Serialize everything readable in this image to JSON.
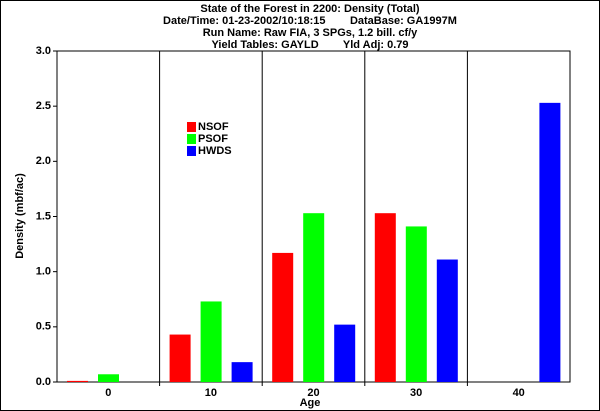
{
  "chart_data": {
    "type": "bar",
    "title": "State of the Forest in 2200: Density (Total)",
    "subtitle": [
      "Date/Time: 01-23-2002/10:18:15        DataBase: GA1997M",
      "Run Name: Raw FIA, 3 SPGs, 1.2 bill. cf/y",
      "Yield Tables: GAYLD        Yld Adj: 0.79"
    ],
    "x_label": "Age",
    "y_label": "Density (mbf/ac)",
    "categories": [
      "0",
      "10",
      "20",
      "30",
      "40"
    ],
    "series": [
      {
        "name": "NSOF",
        "color": "#ff0000",
        "values": [
          0.01,
          0.43,
          1.17,
          1.53,
          null
        ]
      },
      {
        "name": "PSOF",
        "color": "#00ff00",
        "values": [
          0.07,
          0.73,
          1.53,
          1.41,
          null
        ]
      },
      {
        "name": "HWDS",
        "color": "#0000ff",
        "values": [
          null,
          0.18,
          0.52,
          1.11,
          2.53
        ]
      }
    ],
    "ylim": [
      0,
      3
    ],
    "yticks": [
      {
        "value": 0,
        "label": "0.0"
      },
      0.5,
      {
        "value": 1,
        "label": "1.0"
      },
      1.5,
      {
        "value": 2,
        "label": "2.0"
      },
      2.5,
      {
        "value": 3,
        "label": "3.0"
      }
    ],
    "grid": true
  }
}
